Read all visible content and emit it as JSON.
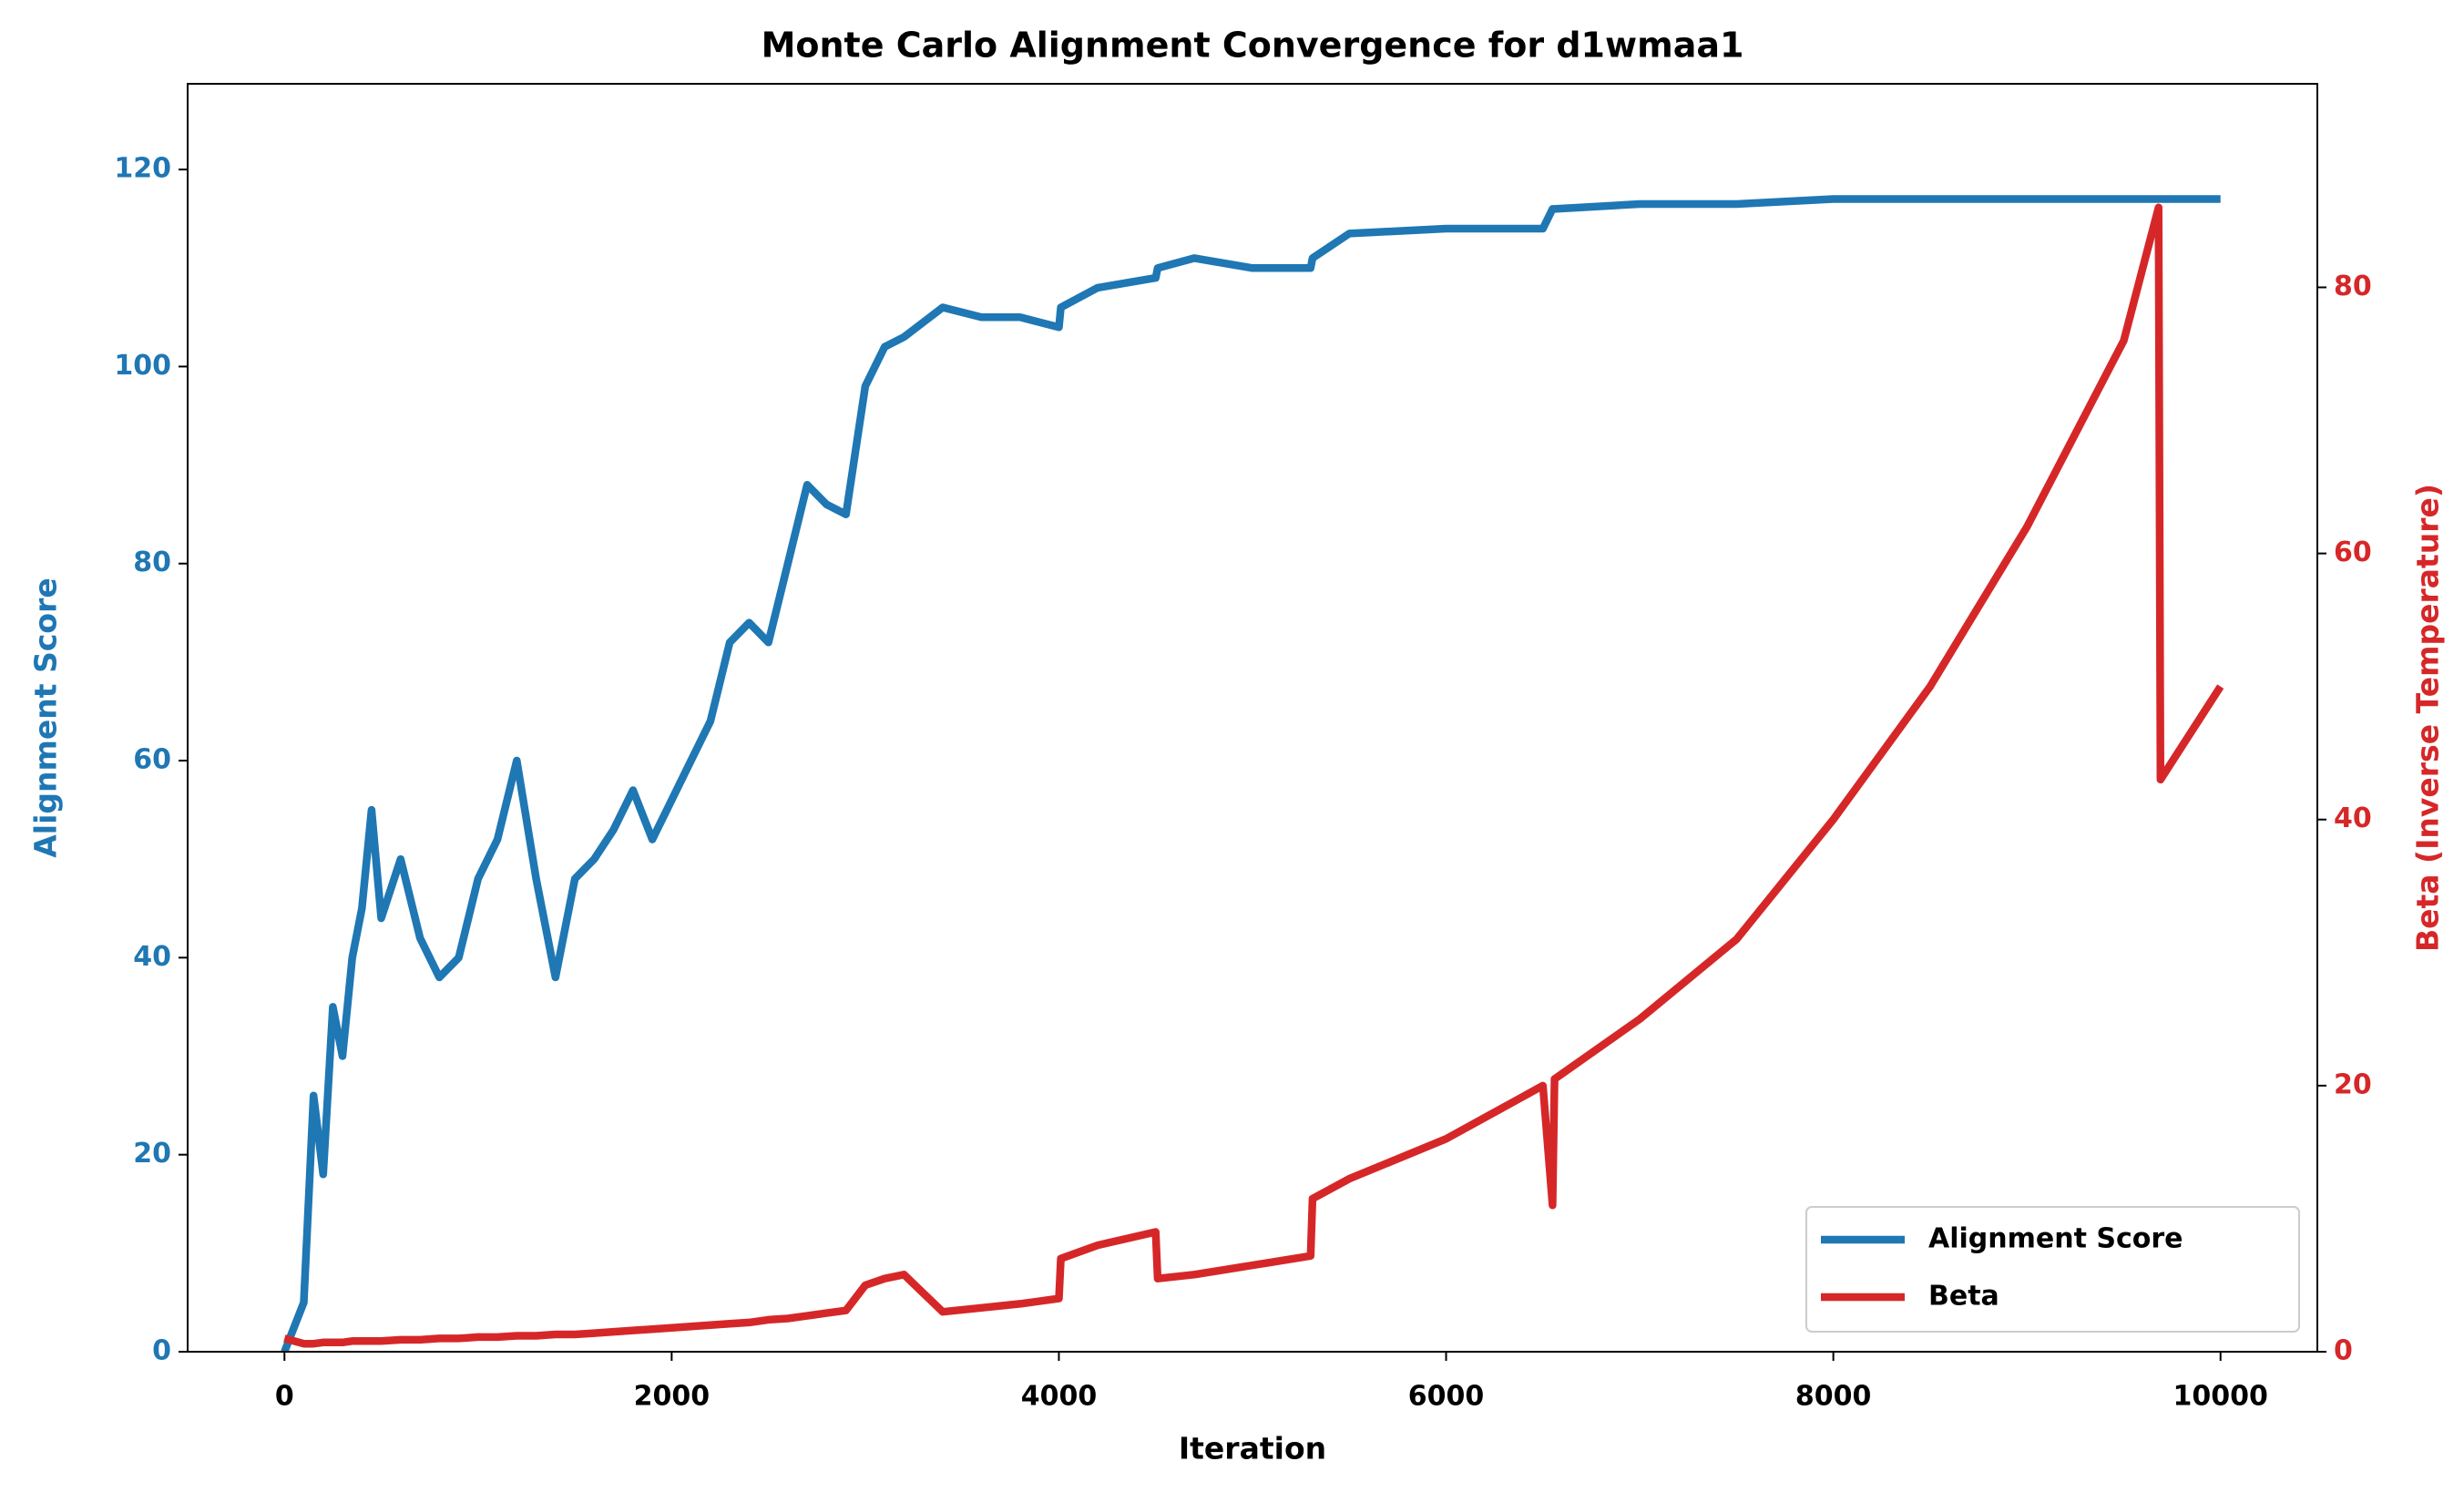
{
  "chart_data": {
    "type": "line",
    "title": "Monte Carlo Alignment Convergence for d1wmaa1",
    "xlabel": "Iteration",
    "ylabel": "Alignment Score",
    "y2label": "Beta (Inverse Temperature)",
    "x": [
      0,
      100,
      150,
      200,
      250,
      300,
      350,
      400,
      450,
      500,
      600,
      700,
      800,
      900,
      1000,
      1100,
      1200,
      1300,
      1400,
      1500,
      1600,
      1700,
      1800,
      1900,
      2000,
      2100,
      2200,
      2300,
      2400,
      2500,
      2600,
      2700,
      2800,
      2900,
      3000,
      3100,
      3200,
      3400,
      3600,
      3800,
      4000,
      4010,
      4200,
      4500,
      4510,
      4700,
      5000,
      5300,
      5310,
      5500,
      6000,
      6500,
      6550,
      6560,
      7000,
      7500,
      8000,
      8500,
      9000,
      9500,
      9680,
      9690,
      10000
    ],
    "series": [
      {
        "name": "Alignment Score",
        "color": "#1f77b4",
        "axis": "y",
        "values": [
          0,
          5,
          26,
          18,
          35,
          30,
          40,
          45,
          55,
          44,
          50,
          42,
          38,
          40,
          48,
          52,
          60,
          48,
          38,
          48,
          50,
          53,
          57,
          52,
          56,
          60,
          64,
          72,
          74,
          72,
          80,
          88,
          86,
          85,
          98,
          102,
          103,
          106,
          105,
          105,
          104,
          106,
          108,
          109,
          110,
          111,
          110,
          110,
          111,
          113.5,
          114,
          114,
          116,
          116,
          116.5,
          116.5,
          117,
          117,
          117,
          117,
          117,
          117,
          117
        ]
      },
      {
        "name": "Beta",
        "color": "#d62728",
        "axis": "y2",
        "values": [
          1,
          0.6,
          0.6,
          0.7,
          0.7,
          0.7,
          0.8,
          0.8,
          0.8,
          0.8,
          0.9,
          0.9,
          1,
          1,
          1.1,
          1.1,
          1.2,
          1.2,
          1.3,
          1.3,
          1.4,
          1.5,
          1.6,
          1.7,
          1.8,
          1.9,
          2,
          2.1,
          2.2,
          2.4,
          2.5,
          2.7,
          2.9,
          3.1,
          5,
          5.5,
          5.8,
          3,
          3.3,
          3.6,
          4,
          7,
          8,
          9,
          5.5,
          5.8,
          6.5,
          7.2,
          11.5,
          13,
          16,
          20,
          11,
          20.5,
          25,
          31,
          40,
          50,
          62,
          76,
          86,
          43,
          50
        ]
      }
    ],
    "xlim": [
      -500,
      10500
    ],
    "xticks": [
      0,
      2000,
      4000,
      6000,
      8000,
      10000
    ],
    "ylim": [
      0,
      128.7
    ],
    "yticks": [
      0,
      20,
      40,
      60,
      80,
      100,
      120
    ],
    "y2lim": [
      0,
      95.3
    ],
    "y2ticks": [
      0,
      20,
      40,
      60,
      80
    ],
    "grid": false,
    "legend": "lower right"
  }
}
